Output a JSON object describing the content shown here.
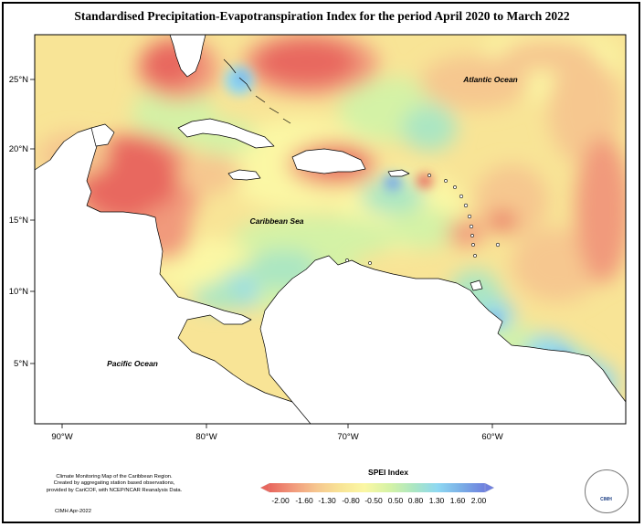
{
  "title": "Standardised Precipitation-Evapotranspiration Index for the period April 2020 to March 2022",
  "map": {
    "lat_labels": [
      "25°N",
      "20°N",
      "15°N",
      "10°N",
      "5°N"
    ],
    "lon_labels": [
      "90°W",
      "80°W",
      "70°W",
      "60°W"
    ],
    "ocean_labels": [
      "Atlantic Ocean",
      "Caribbean Sea",
      "Pacific Ocean"
    ]
  },
  "legend": {
    "title": "SPEI Index",
    "ticks": [
      "-2.00",
      "-1.60",
      "-1.30",
      "-0.80",
      "-0.50",
      "0.50",
      "0.80",
      "1.30",
      "1.60",
      "2.00"
    ],
    "colors": [
      "#e8675e",
      "#f19a7c",
      "#f6c78f",
      "#f8e496",
      "#fbf7a4",
      "#d4f2a6",
      "#abe6c2",
      "#8ed8f2",
      "#7aaee6",
      "#6f80de"
    ]
  },
  "footer": {
    "note_line1": "Climate Monitoring Map of the Caribbean Region.",
    "note_line2": "Created by aggregating station based observations,",
    "note_line3": "provided by CariCOF, with NCEP/NCAR Reanalysis Data.",
    "credit": "CIMH Apr-2022"
  },
  "logo": {
    "text": "CIMH"
  }
}
